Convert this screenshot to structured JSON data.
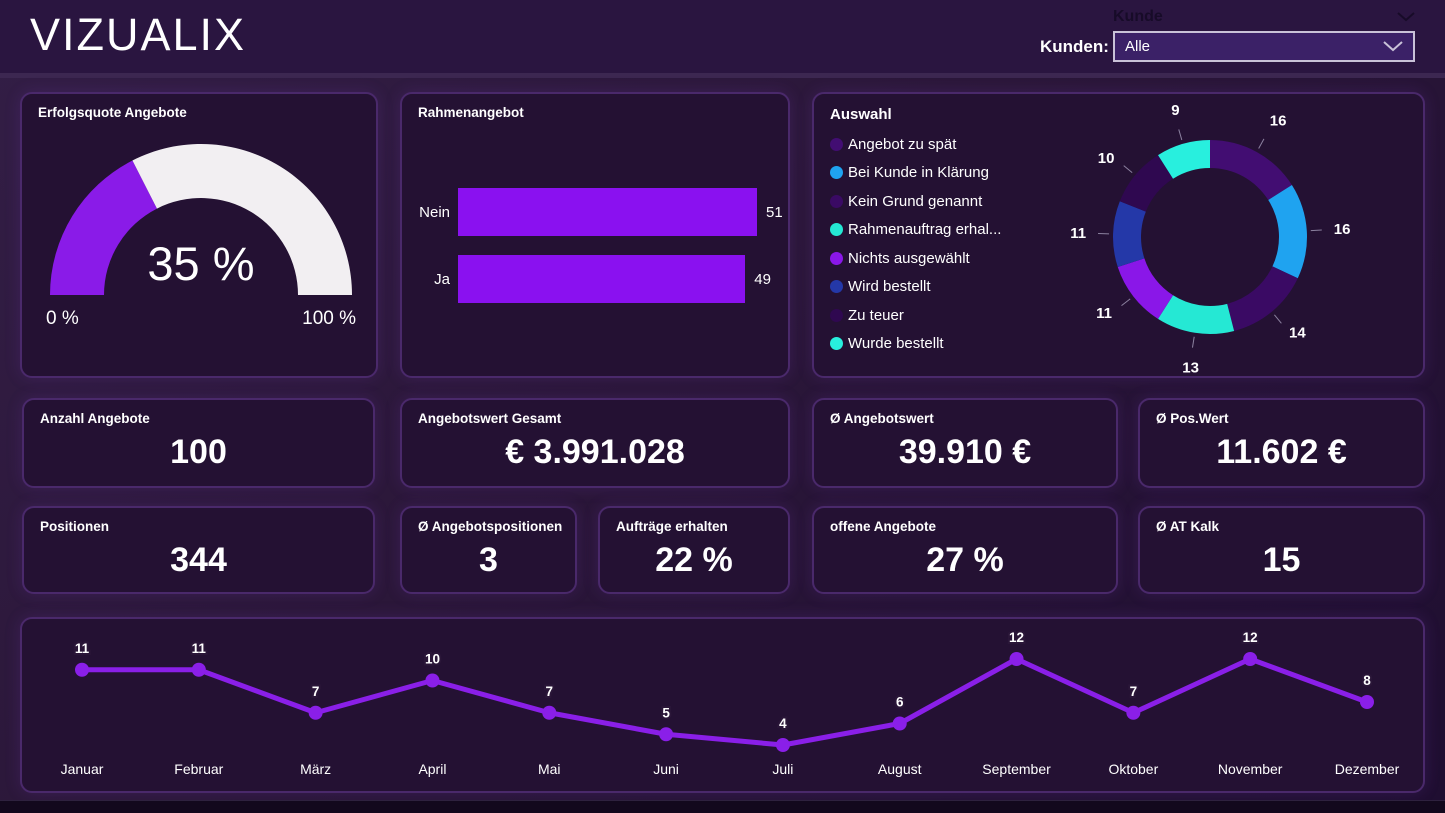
{
  "header": {
    "logo": "VIZUALIX",
    "slicer_ghost_label": "Kunde",
    "kunden_label": "Kunden:",
    "kunden_value": "Alle"
  },
  "colors": {
    "accent_purple": "#8a1be8",
    "card_border": "#4a296b",
    "card_bg": "#241133",
    "header_bg": "#2a1540"
  },
  "kpis": [
    {
      "label": "Anzahl Angebote",
      "value": "100"
    },
    {
      "label": "Angebotswert Gesamt",
      "value": "€ 3.991.028"
    },
    {
      "label": "Ø Angebotswert",
      "value": "39.910 €"
    },
    {
      "label": "Ø Pos.Wert",
      "value": "11.602 €"
    },
    {
      "label": "Positionen",
      "value": "344"
    },
    {
      "label": "Ø Angebotspositionen",
      "value": "3"
    },
    {
      "label": "Aufträge erhalten",
      "value": "22 %"
    },
    {
      "label": "offene Angebote",
      "value": "27 %"
    },
    {
      "label": "Ø AT Kalk",
      "value": "15"
    }
  ],
  "chart_data": [
    {
      "type": "gauge",
      "title": "Erfolgsquote Angebote",
      "value": 35,
      "min": 0,
      "max": 100,
      "value_label": "35 %",
      "min_label": "0 %",
      "max_label": "100 %",
      "fill_color": "#8a1be8",
      "track_color": "#f2eff2"
    },
    {
      "type": "bar",
      "title": "Rahmenangebot",
      "orientation": "horizontal",
      "categories": [
        "Nein",
        "Ja"
      ],
      "values": [
        51,
        49
      ],
      "bar_color": "#8a11f0",
      "data_labels": true
    },
    {
      "type": "donut",
      "legend_title": "Auswahl",
      "legend_position": "left",
      "data_labels": true,
      "series": [
        {
          "label": "Angebot zu spät",
          "value": 16,
          "color": "#420d72"
        },
        {
          "label": "Bei Kunde in Klärung",
          "value": 16,
          "color": "#1fa3f0"
        },
        {
          "label": "Kein Grund genannt",
          "value": 14,
          "color": "#3a0a64"
        },
        {
          "label": "Rahmenauftrag erhal...",
          "value": 13,
          "color": "#25e8d4"
        },
        {
          "label": "Nichts ausgewählt",
          "value": 11,
          "color": "#8a17e8"
        },
        {
          "label": "Wird bestellt",
          "value": 11,
          "color": "#2438a8"
        },
        {
          "label": "Zu teuer",
          "value": 10,
          "color": "#2f0850"
        },
        {
          "label": "Wurde bestellt",
          "value": 9,
          "color": "#28efde"
        }
      ]
    },
    {
      "type": "line",
      "categories": [
        "Januar",
        "Februar",
        "März",
        "April",
        "Mai",
        "Juni",
        "Juli",
        "August",
        "September",
        "Oktober",
        "November",
        "Dezember"
      ],
      "values": [
        11,
        11,
        7,
        10,
        7,
        5,
        4,
        6,
        12,
        7,
        12,
        8
      ],
      "line_color": "#8a1fe8",
      "data_labels": true,
      "ylim": [
        4,
        12
      ]
    }
  ]
}
